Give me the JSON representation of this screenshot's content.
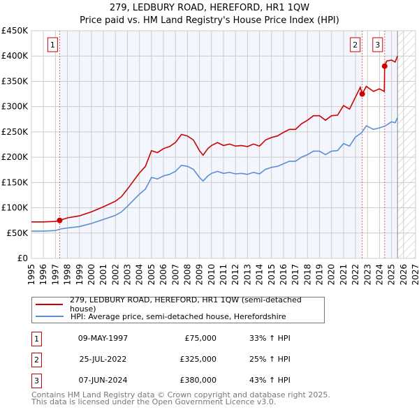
{
  "chart_data": {
    "type": "line",
    "title": "279, LEDBURY ROAD, HEREFORD, HR1 1QW",
    "subtitle": "Price paid vs. HM Land Registry's House Price Index (HPI)",
    "xlim": [
      1995,
      2027
    ],
    "ylim": [
      0,
      450000
    ],
    "grid": true,
    "y_ticks": [
      0,
      50000,
      100000,
      150000,
      200000,
      250000,
      300000,
      350000,
      400000,
      450000
    ],
    "y_tick_labels": [
      "£0",
      "£50K",
      "£100K",
      "£150K",
      "£200K",
      "£250K",
      "£300K",
      "£350K",
      "£400K",
      "£450K"
    ],
    "x_ticks": [
      "1995",
      "1996",
      "1997",
      "1998",
      "1999",
      "2000",
      "2001",
      "2002",
      "2003",
      "2004",
      "2005",
      "2006",
      "2007",
      "2008",
      "2009",
      "2010",
      "2011",
      "2012",
      "2013",
      "2014",
      "2015",
      "2016",
      "2017",
      "2018",
      "2019",
      "2020",
      "2021",
      "2022",
      "2023",
      "2024",
      "2025",
      "2026",
      "2027"
    ],
    "forecast_start": 2025.5,
    "series": [
      {
        "name": "279, LEDBURY ROAD, HEREFORD, HR1 1QW (semi-detached house)",
        "color": "#cc0000",
        "x": [
          1995,
          1996,
          1997,
          1997.35,
          1998,
          1999,
          2000,
          2001,
          2002,
          2002.5,
          2003,
          2003.5,
          2004,
          2004.5,
          2005,
          2005.5,
          2006,
          2006.5,
          2007,
          2007.5,
          2008,
          2008.5,
          2009,
          2009.3,
          2009.7,
          2010,
          2010.5,
          2011,
          2011.5,
          2012,
          2012.5,
          2013,
          2013.5,
          2014,
          2014.5,
          2015,
          2015.5,
          2016,
          2016.5,
          2017,
          2017.5,
          2018,
          2018.5,
          2019,
          2019.5,
          2020,
          2020.5,
          2021,
          2021.5,
          2022,
          2022.4,
          2022.56,
          2022.9,
          2023.5,
          2024,
          2024.4,
          2024.43,
          2024.6,
          2025,
          2025.3,
          2025.5
        ],
        "values": [
          72000,
          72000,
          73000,
          75000,
          80000,
          84000,
          92000,
          102000,
          113000,
          122000,
          137000,
          153000,
          169000,
          182000,
          213000,
          209000,
          217000,
          221000,
          229000,
          245000,
          242000,
          234000,
          213000,
          204000,
          217000,
          223000,
          229000,
          223000,
          226000,
          222000,
          223000,
          221000,
          226000,
          222000,
          234000,
          239000,
          242000,
          249000,
          255000,
          255000,
          266000,
          273000,
          282000,
          282000,
          273000,
          282000,
          283000,
          302000,
          295000,
          319000,
          338000,
          325000,
          340000,
          330000,
          335000,
          330000,
          380000,
          390000,
          392000,
          388000,
          400000
        ]
      },
      {
        "name": "HPI: Average price, semi-detached house, Herefordshire",
        "color": "#5b8fd4",
        "x": [
          1995,
          1996,
          1997,
          1997.4,
          1998,
          1999,
          2000,
          2001,
          2002,
          2002.5,
          2003,
          2003.5,
          2004,
          2004.5,
          2005,
          2005.5,
          2006,
          2006.5,
          2007,
          2007.5,
          2008,
          2008.5,
          2009,
          2009.3,
          2009.7,
          2010,
          2010.5,
          2011,
          2011.5,
          2012,
          2012.5,
          2013,
          2013.5,
          2014,
          2014.5,
          2015,
          2015.5,
          2016,
          2016.5,
          2017,
          2017.5,
          2018,
          2018.5,
          2019,
          2019.5,
          2020,
          2020.5,
          2021,
          2021.5,
          2022,
          2022.5,
          2022.9,
          2023.5,
          2024,
          2024.5,
          2025,
          2025.3,
          2025.5
        ],
        "values": [
          54000,
          54000,
          55000,
          58000,
          60000,
          63000,
          69000,
          77000,
          85000,
          92000,
          103000,
          115000,
          127000,
          137000,
          160000,
          157000,
          163000,
          166000,
          172000,
          184000,
          182000,
          176000,
          160000,
          153000,
          163000,
          168000,
          172000,
          168000,
          170000,
          167000,
          168000,
          166000,
          170000,
          167000,
          176000,
          180000,
          182000,
          187000,
          192000,
          192000,
          200000,
          205000,
          212000,
          212000,
          205000,
          212000,
          213000,
          227000,
          222000,
          240000,
          248000,
          262000,
          255000,
          258000,
          262000,
          270000,
          268000,
          278000
        ]
      }
    ],
    "sales": [
      {
        "id": "1",
        "x": 1997.35,
        "price": 75000
      },
      {
        "id": "2",
        "x": 2022.56,
        "price": 325000
      },
      {
        "id": "3",
        "x": 2024.43,
        "price": 380000
      }
    ],
    "legend": "bottom"
  },
  "legend": {
    "property": "279, LEDBURY ROAD, HEREFORD, HR1 1QW (semi-detached house)",
    "hpi": "HPI: Average price, semi-detached house, Herefordshire"
  },
  "transactions": [
    {
      "id": "1",
      "date": "09-MAY-1997",
      "price": "£75,000",
      "hpi": "33% ↑ HPI"
    },
    {
      "id": "2",
      "date": "25-JUL-2022",
      "price": "£325,000",
      "hpi": "25% ↑ HPI"
    },
    {
      "id": "3",
      "date": "07-JUN-2024",
      "price": "£380,000",
      "hpi": "43% ↑ HPI"
    }
  ],
  "footer": {
    "line1": "Contains HM Land Registry data © Crown copyright and database right 2025.",
    "line2": "This data is licensed under the Open Government Licence v3.0."
  },
  "colors": {
    "property": "#cc0000",
    "hpi": "#5b8fd4",
    "shade": "#f3f6fd",
    "grid": "#cccccc"
  }
}
